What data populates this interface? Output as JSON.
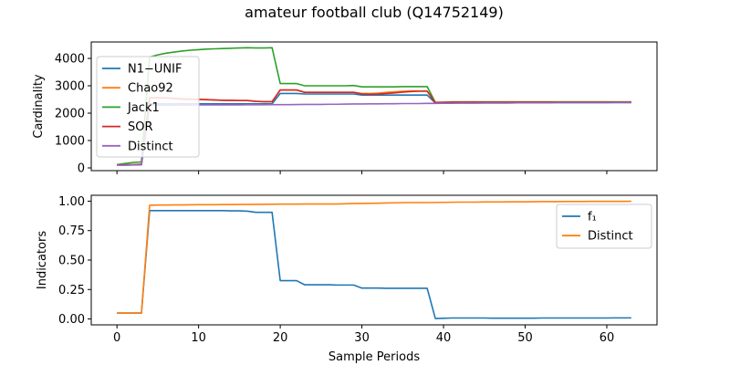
{
  "title": "amateur football club (Q14752149)",
  "colors": {
    "N1-UNIF": "#1f77b4",
    "Chao92": "#ff7f0e",
    "Jack1": "#2ca02c",
    "SOR": "#d62728",
    "Distinct": "#9467bd",
    "f1": "#1f77b4",
    "Distinct2": "#ff7f0e"
  },
  "chart_data": [
    {
      "type": "line",
      "ylabel": "Cardinality",
      "xlabel": "",
      "xlim": [
        -3.15,
        66.15
      ],
      "ylim": [
        -100,
        4600
      ],
      "xticks": [
        0,
        10,
        20,
        30,
        40,
        50,
        60
      ],
      "yticks": [
        0,
        1000,
        2000,
        3000,
        4000
      ],
      "legend": "upper left",
      "x": [
        0,
        1,
        2,
        3,
        4,
        5,
        6,
        7,
        8,
        9,
        10,
        11,
        12,
        13,
        14,
        15,
        16,
        17,
        18,
        19,
        20,
        21,
        22,
        23,
        24,
        25,
        26,
        27,
        28,
        29,
        30,
        31,
        32,
        33,
        34,
        35,
        36,
        37,
        38,
        39,
        40,
        41,
        42,
        43,
        44,
        45,
        46,
        47,
        48,
        49,
        50,
        51,
        52,
        53,
        54,
        55,
        56,
        57,
        58,
        59,
        60,
        61,
        62,
        63
      ],
      "series": [
        {
          "name": "N1−UNIF",
          "color_key": "N1-UNIF",
          "values": [
            100,
            100,
            110,
            120,
            2340,
            2340,
            2340,
            2340,
            2340,
            2340,
            2340,
            2340,
            2340,
            2340,
            2340,
            2340,
            2340,
            2340,
            2340,
            2340,
            2720,
            2720,
            2720,
            2700,
            2700,
            2700,
            2700,
            2700,
            2700,
            2700,
            2660,
            2660,
            2660,
            2660,
            2660,
            2660,
            2660,
            2660,
            2660,
            2370,
            2380,
            2390,
            2390,
            2390,
            2390,
            2390,
            2390,
            2390,
            2390,
            2390,
            2390,
            2390,
            2390,
            2390,
            2390,
            2390,
            2390,
            2390,
            2390,
            2390,
            2390,
            2390,
            2390,
            2390
          ]
        },
        {
          "name": "Chao92",
          "color_key": "Chao92",
          "values": [
            110,
            110,
            120,
            130,
            2560,
            2560,
            2560,
            2540,
            2530,
            2520,
            2510,
            2500,
            2480,
            2470,
            2460,
            2460,
            2460,
            2430,
            2420,
            2420,
            2840,
            2840,
            2840,
            2760,
            2760,
            2760,
            2760,
            2760,
            2760,
            2760,
            2720,
            2720,
            2730,
            2760,
            2780,
            2800,
            2810,
            2810,
            2810,
            2400,
            2400,
            2410,
            2410,
            2410,
            2410,
            2410,
            2410,
            2410,
            2410,
            2410,
            2410,
            2410,
            2410,
            2410,
            2410,
            2410,
            2410,
            2410,
            2410,
            2410,
            2410,
            2410,
            2410,
            2410
          ]
        },
        {
          "name": "Jack1",
          "color_key": "Jack1",
          "values": [
            120,
            160,
            200,
            220,
            4050,
            4130,
            4190,
            4230,
            4270,
            4300,
            4320,
            4340,
            4350,
            4360,
            4370,
            4380,
            4390,
            4380,
            4380,
            4390,
            3080,
            3080,
            3080,
            3000,
            3000,
            3000,
            3000,
            3000,
            3000,
            3010,
            2960,
            2960,
            2960,
            2960,
            2960,
            2970,
            2970,
            2970,
            2970,
            2390,
            2400,
            2410,
            2410,
            2410,
            2410,
            2410,
            2410,
            2410,
            2410,
            2410,
            2410,
            2410,
            2410,
            2410,
            2410,
            2410,
            2410,
            2410,
            2410,
            2410,
            2410,
            2410,
            2410,
            2410
          ]
        },
        {
          "name": "SOR",
          "color_key": "SOR",
          "values": [
            110,
            110,
            120,
            130,
            2560,
            2560,
            2550,
            2530,
            2510,
            2500,
            2500,
            2490,
            2480,
            2470,
            2470,
            2460,
            2460,
            2430,
            2420,
            2420,
            2850,
            2850,
            2850,
            2760,
            2760,
            2760,
            2760,
            2760,
            2760,
            2760,
            2700,
            2690,
            2700,
            2720,
            2740,
            2770,
            2790,
            2800,
            2800,
            2380,
            2390,
            2400,
            2400,
            2400,
            2400,
            2400,
            2400,
            2400,
            2400,
            2400,
            2400,
            2400,
            2400,
            2400,
            2400,
            2400,
            2400,
            2400,
            2400,
            2400,
            2400,
            2400,
            2400,
            2400
          ]
        },
        {
          "name": "Distinct",
          "color_key": "Distinct",
          "values": [
            100,
            100,
            105,
            110,
            2290,
            2290,
            2290,
            2290,
            2295,
            2295,
            2300,
            2300,
            2300,
            2300,
            2300,
            2300,
            2305,
            2305,
            2305,
            2310,
            2310,
            2310,
            2315,
            2320,
            2320,
            2320,
            2325,
            2325,
            2330,
            2335,
            2335,
            2340,
            2340,
            2345,
            2345,
            2350,
            2350,
            2350,
            2355,
            2355,
            2360,
            2360,
            2365,
            2365,
            2365,
            2370,
            2370,
            2370,
            2370,
            2375,
            2375,
            2375,
            2375,
            2375,
            2380,
            2380,
            2380,
            2380,
            2380,
            2380,
            2380,
            2385,
            2385,
            2385
          ]
        }
      ]
    },
    {
      "type": "line",
      "ylabel": "Indicators",
      "xlabel": "Sample Periods",
      "xlim": [
        -3.15,
        66.15
      ],
      "ylim": [
        -0.05,
        1.05
      ],
      "xticks": [
        0,
        10,
        20,
        30,
        40,
        50,
        60
      ],
      "yticks": [
        0.0,
        0.25,
        0.5,
        0.75,
        1.0
      ],
      "ytick_labels": [
        "0.00",
        "0.25",
        "0.50",
        "0.75",
        "1.00"
      ],
      "legend": "upper right",
      "x": [
        0,
        1,
        2,
        3,
        4,
        5,
        6,
        7,
        8,
        9,
        10,
        11,
        12,
        13,
        14,
        15,
        16,
        17,
        18,
        19,
        20,
        21,
        22,
        23,
        24,
        25,
        26,
        27,
        28,
        29,
        30,
        31,
        32,
        33,
        34,
        35,
        36,
        37,
        38,
        39,
        40,
        41,
        42,
        43,
        44,
        45,
        46,
        47,
        48,
        49,
        50,
        51,
        52,
        53,
        54,
        55,
        56,
        57,
        58,
        59,
        60,
        61,
        62,
        63
      ],
      "series": [
        {
          "name": "f₁",
          "color_key": "f1",
          "values": [
            0.05,
            0.05,
            0.05,
            0.05,
            0.92,
            0.92,
            0.92,
            0.92,
            0.92,
            0.92,
            0.92,
            0.92,
            0.92,
            0.92,
            0.918,
            0.918,
            0.915,
            0.905,
            0.905,
            0.905,
            0.325,
            0.325,
            0.325,
            0.29,
            0.29,
            0.29,
            0.29,
            0.288,
            0.288,
            0.288,
            0.262,
            0.262,
            0.262,
            0.26,
            0.26,
            0.26,
            0.26,
            0.26,
            0.26,
            0.004,
            0.006,
            0.008,
            0.008,
            0.008,
            0.008,
            0.008,
            0.007,
            0.007,
            0.007,
            0.007,
            0.007,
            0.007,
            0.008,
            0.008,
            0.008,
            0.008,
            0.008,
            0.008,
            0.008,
            0.008,
            0.008,
            0.009,
            0.009,
            0.009
          ]
        },
        {
          "name": "Distinct",
          "color_key": "Distinct2",
          "values": [
            0.05,
            0.05,
            0.05,
            0.05,
            0.965,
            0.967,
            0.967,
            0.968,
            0.968,
            0.969,
            0.97,
            0.97,
            0.97,
            0.971,
            0.971,
            0.972,
            0.972,
            0.973,
            0.973,
            0.974,
            0.975,
            0.975,
            0.975,
            0.976,
            0.976,
            0.976,
            0.976,
            0.976,
            0.978,
            0.98,
            0.981,
            0.982,
            0.983,
            0.985,
            0.986,
            0.987,
            0.988,
            0.988,
            0.988,
            0.989,
            0.99,
            0.991,
            0.992,
            0.992,
            0.992,
            0.993,
            0.993,
            0.993,
            0.994,
            0.994,
            0.994,
            0.995,
            0.996,
            0.996,
            0.996,
            0.997,
            0.997,
            0.997,
            0.998,
            0.998,
            0.998,
            0.998,
            0.998,
            0.999
          ]
        }
      ]
    }
  ]
}
